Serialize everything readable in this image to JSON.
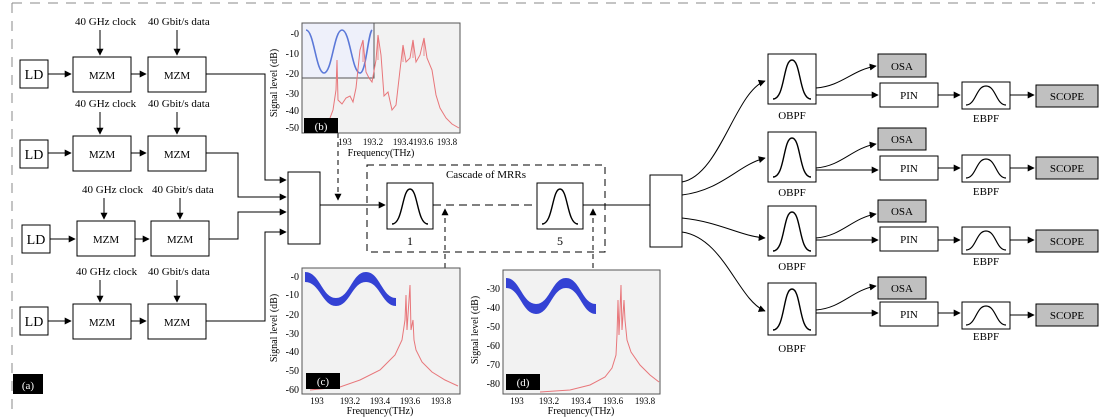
{
  "figure_label": "(a)",
  "transmitters": [
    {
      "source": "LD",
      "clock_label": "40 GHz clock",
      "data_label": "40 Gbit/s data",
      "mod1": "MZM",
      "mod2": "MZM"
    },
    {
      "source": "LD",
      "clock_label": "40 GHz clock",
      "data_label": "40 Gbit/s data",
      "mod1": "MZM",
      "mod2": "MZM"
    },
    {
      "source": "LD",
      "clock_label": "40 GHz clock",
      "data_label": "40 Gbit/s data",
      "mod1": "MZM",
      "mod2": "MZM"
    },
    {
      "source": "LD",
      "clock_label": "40 GHz clock",
      "data_label": "40 Gbit/s data",
      "mod1": "MZM",
      "mod2": "MZM"
    }
  ],
  "cascade": {
    "title": "Cascade of MRRs",
    "first_index": "1",
    "last_index": "5"
  },
  "receivers": [
    {
      "filter": "OBPF",
      "osa": "OSA",
      "detector": "PIN",
      "electrical_filter": "EBPF",
      "scope": "SCOPE"
    },
    {
      "filter": "OBPF",
      "osa": "OSA",
      "detector": "PIN",
      "electrical_filter": "EBPF",
      "scope": "SCOPE"
    },
    {
      "filter": "OBPF",
      "osa": "OSA",
      "detector": "PIN",
      "electrical_filter": "EBPF",
      "scope": "SCOPE"
    },
    {
      "filter": "OBPF",
      "osa": "OSA",
      "detector": "PIN",
      "electrical_filter": "EBPF",
      "scope": "SCOPE"
    }
  ],
  "insets": [
    {
      "panel": "(b)",
      "ylabel": "Signal level (dB)",
      "xlabel": "Frequency(THz)",
      "yticks": [
        "-0",
        "-10",
        "-20",
        "-30",
        "-40",
        "-50"
      ],
      "xticks": [
        "193",
        "193.2",
        "193.4",
        "193.6",
        "193.8"
      ]
    },
    {
      "panel": "(c)",
      "ylabel": "Signal level (dB)",
      "xlabel": "Frequency(THz)",
      "yticks": [
        "-0",
        "-10",
        "-20",
        "-30",
        "-40",
        "-50",
        "-60"
      ],
      "xticks": [
        "193",
        "193.2",
        "193.4",
        "193.6",
        "193.8"
      ]
    },
    {
      "panel": "(d)",
      "ylabel": "Signal level (dB)",
      "xlabel": "Frequency(THz)",
      "yticks": [
        "-30",
        "-40",
        "-50",
        "-60",
        "-70",
        "-80"
      ],
      "xticks": [
        "193",
        "193.2",
        "193.4",
        "193.6",
        "193.8"
      ]
    }
  ],
  "colors": {
    "spectrum": "#e8767a",
    "eye": "#1f2fd0",
    "filter_response": "#5b78d8",
    "instrument_fill": "#c0c0c0",
    "inset_bg": "#f2f2f2"
  }
}
